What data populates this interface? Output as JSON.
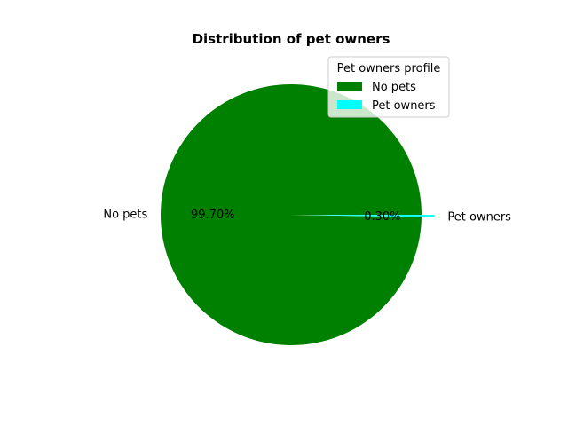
{
  "chart_data": {
    "type": "pie",
    "title": "Distribution of pet owners",
    "slices": [
      {
        "label": "No pets",
        "value": 99.7,
        "pct_label": "99.70%",
        "color": "#008000"
      },
      {
        "label": "Pet owners",
        "value": 0.3,
        "pct_label": "0.30%",
        "color": "#00ffff"
      }
    ],
    "legend": {
      "title": "Pet owners profile",
      "location": "upper right",
      "entries": [
        "No pets",
        "Pet owners"
      ]
    }
  }
}
